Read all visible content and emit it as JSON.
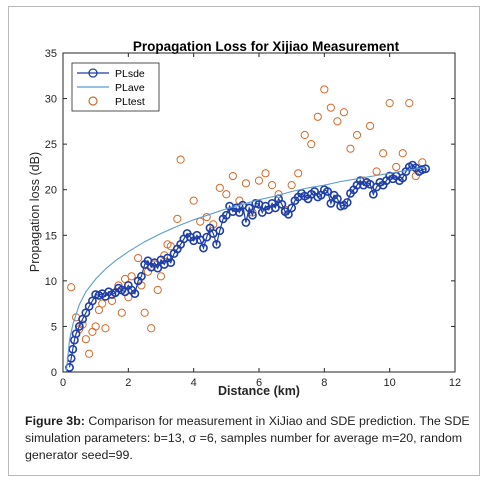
{
  "chart_data": {
    "type": "line",
    "title": "Propagation Loss for Xijiao Measurement",
    "xlabel": "Distance (km)",
    "ylabel": "Propagation loss (dB)",
    "xlim": [
      0,
      12
    ],
    "ylim": [
      0,
      35
    ],
    "xticks": [
      "0",
      "2",
      "4",
      "6",
      "8",
      "10",
      "12"
    ],
    "yticks": [
      "0",
      "5",
      "10",
      "15",
      "20",
      "25",
      "30",
      "35"
    ],
    "grid": false,
    "legend_position": "top-left",
    "legend": [
      "PLsde",
      "PLave",
      "PLtest"
    ],
    "series": [
      {
        "name": "PLsde",
        "style": "line-with-circle-markers",
        "color": "#1f3fa8",
        "x": [
          0.2,
          0.25,
          0.3,
          0.35,
          0.4,
          0.5,
          0.6,
          0.7,
          0.8,
          0.9,
          1.0,
          1.1,
          1.2,
          1.3,
          1.4,
          1.5,
          1.6,
          1.7,
          1.8,
          1.9,
          2.0,
          2.1,
          2.2,
          2.3,
          2.4,
          2.5,
          2.6,
          2.7,
          2.8,
          2.9,
          3.0,
          3.1,
          3.2,
          3.3,
          3.4,
          3.5,
          3.6,
          3.7,
          3.8,
          3.9,
          4.0,
          4.1,
          4.2,
          4.3,
          4.4,
          4.5,
          4.6,
          4.7,
          4.8,
          4.9,
          5.0,
          5.1,
          5.2,
          5.3,
          5.4,
          5.5,
          5.6,
          5.7,
          5.8,
          5.9,
          6.0,
          6.1,
          6.2,
          6.3,
          6.4,
          6.5,
          6.6,
          6.7,
          6.8,
          6.9,
          7.0,
          7.1,
          7.2,
          7.3,
          7.4,
          7.5,
          7.6,
          7.7,
          7.8,
          7.9,
          8.0,
          8.1,
          8.2,
          8.3,
          8.4,
          8.5,
          8.6,
          8.7,
          8.8,
          8.9,
          9.0,
          9.1,
          9.2,
          9.3,
          9.4,
          9.5,
          9.6,
          9.7,
          9.8,
          9.9,
          10.0,
          10.1,
          10.2,
          10.3,
          10.4,
          10.5,
          10.6,
          10.7,
          10.8,
          10.9,
          11.0,
          11.1
        ],
        "y": [
          0.5,
          1.5,
          2.5,
          3.5,
          4.2,
          5.0,
          5.8,
          6.5,
          7.2,
          7.8,
          8.5,
          8.4,
          8.6,
          8.3,
          8.8,
          8.5,
          8.7,
          9.2,
          9.0,
          8.8,
          9.5,
          9.0,
          8.6,
          10.0,
          10.5,
          11.8,
          12.2,
          11.5,
          12.0,
          11.4,
          12.3,
          11.8,
          12.5,
          12.0,
          13.0,
          13.5,
          14.0,
          14.6,
          15.2,
          14.8,
          14.4,
          15.0,
          14.5,
          13.6,
          14.8,
          15.8,
          15.2,
          14.0,
          15.5,
          16.8,
          17.2,
          18.2,
          17.6,
          18.0,
          17.5,
          18.3,
          16.4,
          18.0,
          17.2,
          18.5,
          18.4,
          17.5,
          18.2,
          17.8,
          18.5,
          18.0,
          19.0,
          18.4,
          17.6,
          17.3,
          18.0,
          18.8,
          19.2,
          19.6,
          19.3,
          19.0,
          19.5,
          19.8,
          19.2,
          19.4,
          20.0,
          19.8,
          18.5,
          19.4,
          19.0,
          18.2,
          18.3,
          18.6,
          19.6,
          20.0,
          20.5,
          21.0,
          20.5,
          20.8,
          20.6,
          19.5,
          20.3,
          20.8,
          20.5,
          21.0,
          21.5,
          21.2,
          21.5,
          21.0,
          21.3,
          22.0,
          22.5,
          22.7,
          22.4,
          22.0,
          22.2,
          22.3
        ]
      },
      {
        "name": "PLave",
        "style": "line",
        "color": "#5a9bd5",
        "x": [
          0.1,
          0.2,
          0.3,
          0.5,
          0.7,
          1.0,
          1.3,
          1.6,
          2.0,
          2.5,
          3.0,
          3.5,
          4.0,
          4.5,
          5.0,
          5.5,
          6.0,
          6.5,
          7.0,
          7.5,
          8.0,
          8.5,
          9.0,
          9.5,
          10.0,
          10.5,
          11.0,
          11.1
        ],
        "y": [
          0.0,
          3.5,
          5.2,
          7.4,
          8.8,
          10.2,
          11.3,
          12.2,
          13.2,
          14.3,
          15.2,
          16.0,
          16.7,
          17.3,
          17.9,
          18.4,
          18.9,
          19.3,
          19.8,
          20.2,
          20.5,
          20.9,
          21.2,
          21.5,
          21.8,
          22.1,
          22.4,
          22.5
        ]
      },
      {
        "name": "PLtest",
        "style": "circle-markers",
        "color": "#d46a2c",
        "x": [
          0.25,
          0.4,
          0.5,
          0.6,
          0.7,
          0.8,
          0.9,
          1.0,
          1.1,
          1.2,
          1.3,
          1.5,
          1.7,
          1.8,
          1.9,
          2.0,
          2.1,
          2.3,
          2.4,
          2.5,
          2.6,
          2.7,
          2.8,
          2.9,
          3.0,
          3.1,
          3.2,
          3.3,
          3.5,
          3.6,
          3.8,
          4.0,
          4.2,
          4.4,
          4.6,
          4.8,
          5.0,
          5.2,
          5.4,
          5.6,
          5.8,
          6.0,
          6.2,
          6.4,
          6.6,
          6.8,
          7.0,
          7.2,
          7.4,
          7.6,
          7.8,
          8.0,
          8.2,
          8.4,
          8.6,
          8.8,
          9.0,
          9.2,
          9.4,
          9.6,
          9.8,
          10.0,
          10.2,
          10.4,
          10.6,
          10.8,
          11.0
        ],
        "y": [
          9.3,
          6.0,
          4.7,
          5.2,
          3.6,
          2.0,
          4.4,
          5.0,
          6.8,
          7.5,
          4.8,
          7.8,
          9.5,
          6.5,
          10.2,
          8.2,
          10.5,
          12.5,
          9.5,
          6.5,
          11.0,
          4.8,
          11.8,
          9.0,
          10.5,
          12.8,
          14.0,
          13.8,
          16.8,
          23.3,
          15.2,
          18.8,
          16.5,
          17.0,
          16.2,
          20.2,
          19.5,
          21.5,
          18.8,
          20.7,
          17.5,
          21.0,
          21.8,
          20.5,
          19.5,
          17.8,
          20.5,
          21.8,
          26.0,
          25.0,
          28.0,
          31.0,
          29.0,
          27.5,
          28.5,
          24.5,
          26.0,
          21.0,
          27.0,
          22.0,
          24.0,
          29.5,
          22.5,
          24.0,
          29.5,
          21.5,
          23.0
        ]
      }
    ]
  },
  "caption": {
    "label": "Figure 3b:",
    "text": "Comparison for measurement in XiJiao and SDE prediction. The SDE simulation parameters: b=13, σ =6, samples number for average m=20, random generator seed=99."
  }
}
